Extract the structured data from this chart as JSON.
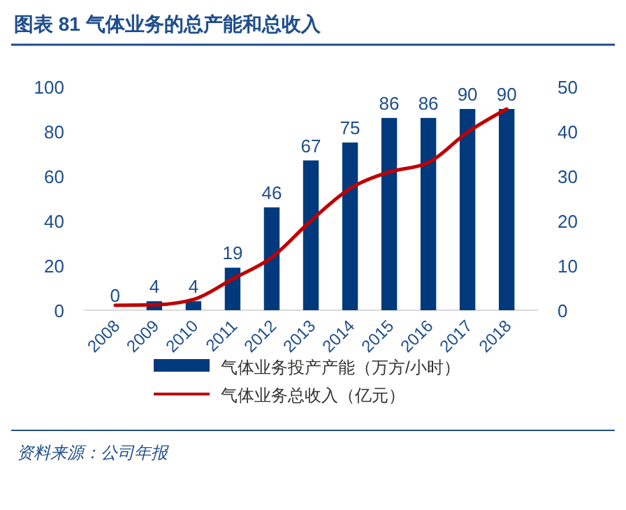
{
  "chart_data": {
    "type": "bar",
    "title": "图表 81   气体业务的总产能和总收入",
    "categories": [
      "2008",
      "2009",
      "2010",
      "2011",
      "2012",
      "2013",
      "2014",
      "2015",
      "2016",
      "2017",
      "2018"
    ],
    "series": [
      {
        "name": "气体业务投产产能（万方/小时）",
        "color": "#003a7d",
        "values": [
          0,
          4,
          4,
          19,
          46,
          67,
          75,
          86,
          86,
          90,
          90
        ],
        "value_labels": [
          "0",
          "4",
          "4",
          "19",
          "46",
          "67",
          "75",
          "86",
          "86",
          "90",
          "90"
        ]
      },
      {
        "name": "气体业务总收入（亿元）",
        "type": "line",
        "axis": "y2",
        "color": "#c00000",
        "values": [
          1.1,
          1.2,
          2.4,
          7,
          11.8,
          20,
          27.2,
          30.9,
          33,
          39.8,
          45
        ]
      }
    ],
    "ylim": [
      0,
      100
    ],
    "yticks": [
      0,
      20,
      40,
      60,
      80,
      100
    ],
    "y2lim": [
      0,
      50
    ],
    "y2ticks": [
      0,
      10,
      20,
      30,
      40,
      50
    ],
    "legend": "bottom",
    "annotations": [
      "资料来源：公司年报"
    ]
  }
}
